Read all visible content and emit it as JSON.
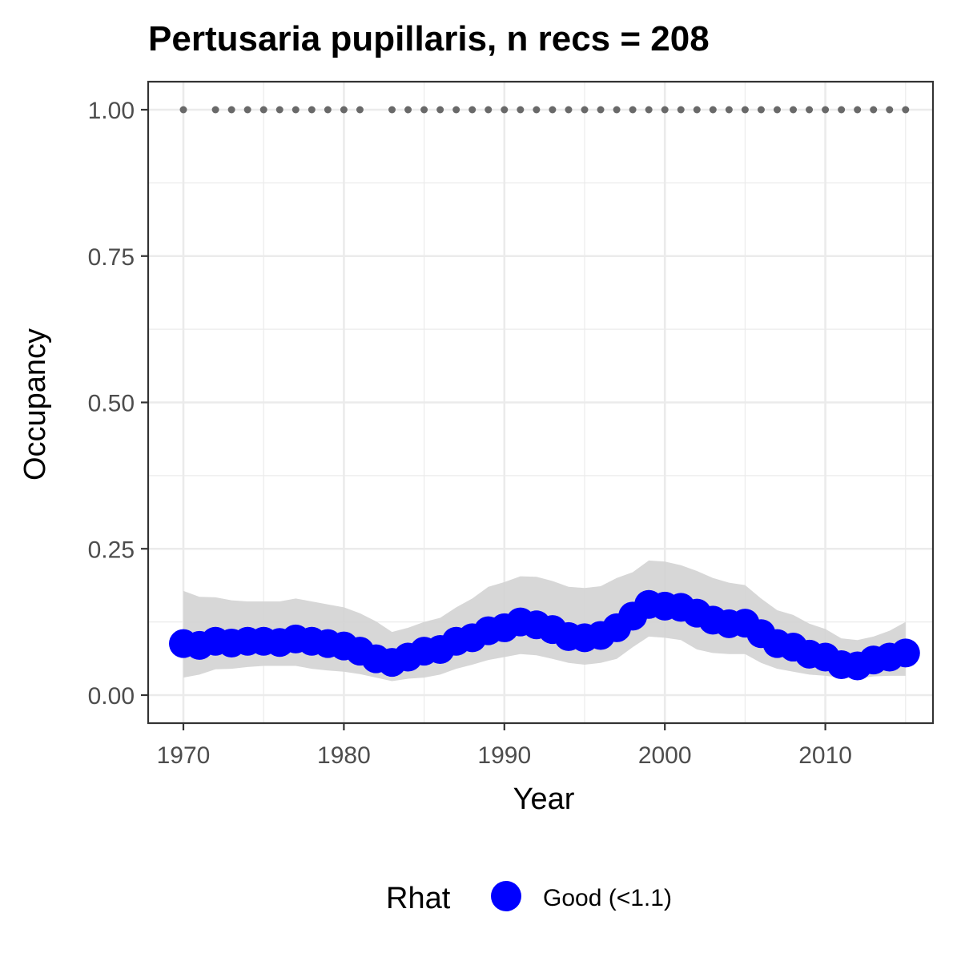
{
  "chart_data": {
    "type": "line",
    "title": "Pertusaria pupillaris, n recs = 208",
    "xlabel": "Year",
    "ylabel": "Occupancy",
    "xlim": [
      1967.8,
      1017.0
    ],
    "ylim": [
      -0.045,
      1.05
    ],
    "x_ticks": [
      1970,
      1980,
      1990,
      2000,
      2010
    ],
    "x_tick_labels": [
      "1970",
      "1980",
      "1990",
      "2000",
      "2010"
    ],
    "y_ticks": [
      0,
      0.25,
      0.5,
      0.75,
      1.0
    ],
    "y_tick_labels": [
      "0.00",
      "0.25",
      "0.50",
      "0.75",
      "1.00"
    ],
    "grid": true,
    "colors": {
      "series": "#0000ff",
      "ribbon": "#d3d3d3",
      "record_marks": "#696969",
      "grid": "#ebebeb",
      "panel_border": "#333333"
    },
    "series": [
      {
        "name": "Good (<1.1)",
        "x": [
          1970,
          1971,
          1972,
          1973,
          1974,
          1975,
          1976,
          1977,
          1978,
          1979,
          1980,
          1981,
          1982,
          1983,
          1984,
          1985,
          1986,
          1987,
          1988,
          1989,
          1990,
          1991,
          1992,
          1993,
          1994,
          1995,
          1996,
          1997,
          1998,
          1999,
          2000,
          2001,
          2002,
          2003,
          2004,
          2005,
          2006,
          2007,
          2008,
          2009,
          2010,
          2011,
          2012,
          2013,
          2014,
          2015
        ],
        "y": [
          0.088,
          0.085,
          0.092,
          0.089,
          0.092,
          0.092,
          0.09,
          0.096,
          0.092,
          0.088,
          0.084,
          0.075,
          0.062,
          0.056,
          0.065,
          0.075,
          0.078,
          0.092,
          0.098,
          0.11,
          0.115,
          0.125,
          0.12,
          0.112,
          0.1,
          0.098,
          0.102,
          0.115,
          0.135,
          0.155,
          0.152,
          0.15,
          0.14,
          0.128,
          0.122,
          0.123,
          0.105,
          0.088,
          0.082,
          0.07,
          0.065,
          0.052,
          0.05,
          0.06,
          0.065,
          0.072
        ],
        "lower": [
          0.03,
          0.035,
          0.044,
          0.045,
          0.048,
          0.05,
          0.05,
          0.05,
          0.045,
          0.042,
          0.04,
          0.036,
          0.03,
          0.024,
          0.028,
          0.03,
          0.035,
          0.045,
          0.052,
          0.06,
          0.065,
          0.07,
          0.068,
          0.062,
          0.055,
          0.052,
          0.055,
          0.062,
          0.082,
          0.1,
          0.098,
          0.094,
          0.078,
          0.072,
          0.07,
          0.07,
          0.055,
          0.045,
          0.04,
          0.035,
          0.033,
          0.03,
          0.028,
          0.032,
          0.033,
          0.033
        ],
        "upper": [
          0.178,
          0.168,
          0.167,
          0.162,
          0.16,
          0.16,
          0.16,
          0.165,
          0.16,
          0.155,
          0.15,
          0.14,
          0.126,
          0.108,
          0.115,
          0.125,
          0.132,
          0.15,
          0.165,
          0.185,
          0.193,
          0.203,
          0.202,
          0.195,
          0.185,
          0.183,
          0.186,
          0.2,
          0.21,
          0.23,
          0.228,
          0.222,
          0.212,
          0.2,
          0.192,
          0.188,
          0.165,
          0.145,
          0.137,
          0.122,
          0.113,
          0.097,
          0.094,
          0.1,
          0.11,
          0.125
        ]
      }
    ],
    "record_years": [
      1970,
      1972,
      1973,
      1974,
      1975,
      1976,
      1977,
      1978,
      1979,
      1980,
      1981,
      1983,
      1984,
      1985,
      1986,
      1987,
      1988,
      1989,
      1990,
      1991,
      1992,
      1993,
      1994,
      1995,
      1996,
      1997,
      1998,
      1999,
      2000,
      2001,
      2002,
      2003,
      2004,
      2005,
      2006,
      2007,
      2008,
      2009,
      2010,
      2011,
      2012,
      2013,
      2014,
      2015
    ],
    "record_y": 1.0,
    "legend": {
      "title": "Rhat",
      "label": "Good (<1.1)",
      "position": "bottom"
    }
  }
}
